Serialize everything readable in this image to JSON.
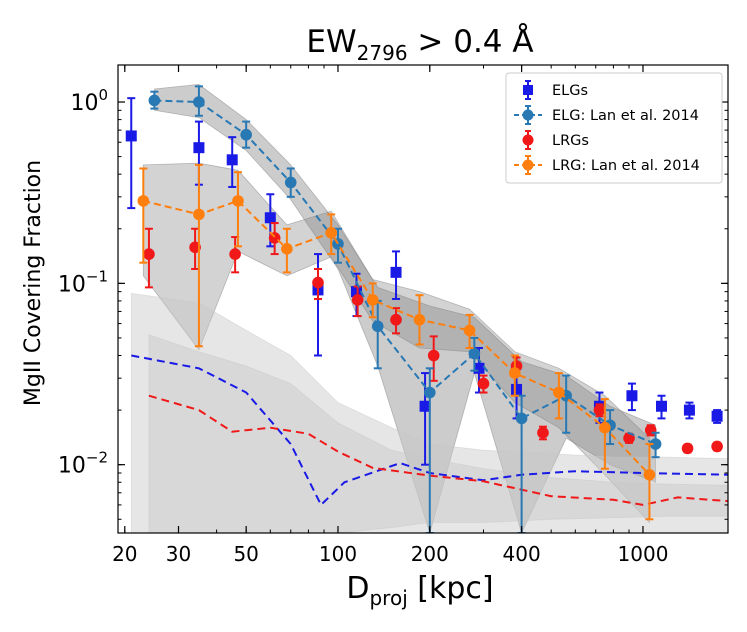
{
  "chart_data": {
    "type": "scatter",
    "title": "EW",
    "title_sub": "2796",
    "title_rest": " > 0.4 Å",
    "xlabel": "D",
    "xlabel_sub": "proj",
    "xlabel_rest": " [kpc]",
    "ylabel": "MgII Covering Fraction",
    "xscale": "log",
    "yscale": "log",
    "xlim": [
      19,
      1900
    ],
    "ylim": [
      0.0042,
      1.6
    ],
    "x_ticks": [
      {
        "value": 20,
        "label": "20"
      },
      {
        "value": 30,
        "label": "30"
      },
      {
        "value": 50,
        "label": "50"
      },
      {
        "value": 100,
        "label": "100"
      },
      {
        "value": 200,
        "label": "200"
      },
      {
        "value": 400,
        "label": "400"
      },
      {
        "value": 1000,
        "label": "1000"
      }
    ],
    "y_ticks": [
      {
        "value": 1,
        "label": "10",
        "exp": "0"
      },
      {
        "value": 0.1,
        "label": "10",
        "exp": "−1"
      },
      {
        "value": 0.01,
        "label": "10",
        "exp": "−2"
      }
    ],
    "legend_position": "top-right",
    "legend": [
      {
        "label": "ELGs",
        "marker": "square",
        "color": "#1a1ae6",
        "line": false
      },
      {
        "label": "ELG: Lan et al. 2014",
        "marker": "circle",
        "color": "#2878b4",
        "line": true
      },
      {
        "label": "LRGs",
        "marker": "circle",
        "color": "#f01818",
        "line": false
      },
      {
        "label": "LRG: Lan et al. 2014",
        "marker": "circle",
        "color": "#ff7f0e",
        "line": true
      }
    ],
    "series": [
      {
        "name": "ELGs",
        "marker": "square",
        "color": "#1a1ae6",
        "points": [
          {
            "x": 21,
            "y": 0.65,
            "lo": 0.26,
            "hi": 1.05
          },
          {
            "x": 35,
            "y": 0.56,
            "lo": 0.35,
            "hi": 0.78
          },
          {
            "x": 45,
            "y": 0.48,
            "lo": 0.34,
            "hi": 0.64
          },
          {
            "x": 60,
            "y": 0.23,
            "lo": 0.16,
            "hi": 0.31
          },
          {
            "x": 86,
            "y": 0.092,
            "lo": 0.04,
            "hi": 0.145
          },
          {
            "x": 115,
            "y": 0.09,
            "lo": 0.066,
            "hi": 0.113
          },
          {
            "x": 155,
            "y": 0.115,
            "lo": 0.082,
            "hi": 0.15
          },
          {
            "x": 193,
            "y": 0.021,
            "lo": 0.01,
            "hi": 0.032
          },
          {
            "x": 290,
            "y": 0.034,
            "lo": 0.025,
            "hi": 0.044
          },
          {
            "x": 385,
            "y": 0.026,
            "lo": 0.018,
            "hi": 0.034
          },
          {
            "x": 720,
            "y": 0.021,
            "lo": 0.017,
            "hi": 0.025
          },
          {
            "x": 920,
            "y": 0.024,
            "lo": 0.02,
            "hi": 0.028
          },
          {
            "x": 1150,
            "y": 0.021,
            "lo": 0.018,
            "hi": 0.024
          },
          {
            "x": 1420,
            "y": 0.02,
            "lo": 0.018,
            "hi": 0.022
          },
          {
            "x": 1750,
            "y": 0.0185,
            "lo": 0.017,
            "hi": 0.02
          }
        ]
      },
      {
        "name": "LRGs",
        "marker": "circle",
        "color": "#f01818",
        "points": [
          {
            "x": 24,
            "y": 0.145,
            "lo": 0.095,
            "hi": 0.2
          },
          {
            "x": 34,
            "y": 0.158,
            "lo": 0.12,
            "hi": 0.2
          },
          {
            "x": 46,
            "y": 0.145,
            "lo": 0.115,
            "hi": 0.18
          },
          {
            "x": 62,
            "y": 0.178,
            "lo": 0.145,
            "hi": 0.215
          },
          {
            "x": 86,
            "y": 0.101,
            "lo": 0.082,
            "hi": 0.12
          },
          {
            "x": 116,
            "y": 0.081,
            "lo": 0.066,
            "hi": 0.096
          },
          {
            "x": 155,
            "y": 0.063,
            "lo": 0.053,
            "hi": 0.073
          },
          {
            "x": 206,
            "y": 0.04,
            "lo": 0.029,
            "hi": 0.051
          },
          {
            "x": 300,
            "y": 0.028,
            "lo": 0.025,
            "hi": 0.031
          },
          {
            "x": 385,
            "y": 0.035,
            "lo": 0.031,
            "hi": 0.039
          },
          {
            "x": 470,
            "y": 0.015,
            "lo": 0.0138,
            "hi": 0.0162
          },
          {
            "x": 720,
            "y": 0.02,
            "lo": 0.0185,
            "hi": 0.0215
          },
          {
            "x": 900,
            "y": 0.014,
            "lo": 0.0132,
            "hi": 0.0148
          },
          {
            "x": 1060,
            "y": 0.0155,
            "lo": 0.0145,
            "hi": 0.0165
          },
          {
            "x": 1400,
            "y": 0.0123,
            "lo": 0.0117,
            "hi": 0.0129
          },
          {
            "x": 1750,
            "y": 0.0126,
            "lo": 0.012,
            "hi": 0.0132
          }
        ]
      },
      {
        "name": "ELG: Lan et al. 2014",
        "marker": "circle",
        "color": "#2878b4",
        "dashed": true,
        "points": [
          {
            "x": 25,
            "y": 1.02,
            "lo": 0.92,
            "hi": 1.14
          },
          {
            "x": 35,
            "y": 1.0,
            "lo": 0.84,
            "hi": 1.22
          },
          {
            "x": 50,
            "y": 0.66,
            "lo": 0.56,
            "hi": 0.78
          },
          {
            "x": 70,
            "y": 0.36,
            "lo": 0.3,
            "hi": 0.43
          },
          {
            "x": 100,
            "y": 0.165,
            "lo": 0.13,
            "hi": 0.2
          },
          {
            "x": 135,
            "y": 0.058,
            "lo": 0.034,
            "hi": 0.08
          },
          {
            "x": 200,
            "y": 0.025,
            "lo": 0.004,
            "hi": 0.034
          },
          {
            "x": 280,
            "y": 0.041,
            "lo": 0.033,
            "hi": 0.05
          },
          {
            "x": 400,
            "y": 0.018,
            "lo": 0.004,
            "hi": 0.024
          },
          {
            "x": 560,
            "y": 0.024,
            "lo": 0.015,
            "hi": 0.031
          },
          {
            "x": 780,
            "y": 0.0165,
            "lo": 0.013,
            "hi": 0.02
          },
          {
            "x": 1100,
            "y": 0.013,
            "lo": 0.011,
            "hi": 0.015
          }
        ]
      },
      {
        "name": "LRG: Lan et al. 2014",
        "marker": "circle",
        "color": "#ff7f0e",
        "dashed": true,
        "points": [
          {
            "x": 23,
            "y": 0.285,
            "lo": 0.13,
            "hi": 0.43
          },
          {
            "x": 35,
            "y": 0.24,
            "lo": 0.045,
            "hi": 0.45
          },
          {
            "x": 47,
            "y": 0.285,
            "lo": 0.16,
            "hi": 0.41
          },
          {
            "x": 68,
            "y": 0.155,
            "lo": 0.115,
            "hi": 0.2
          },
          {
            "x": 95,
            "y": 0.19,
            "lo": 0.145,
            "hi": 0.24
          },
          {
            "x": 130,
            "y": 0.081,
            "lo": 0.065,
            "hi": 0.1
          },
          {
            "x": 185,
            "y": 0.063,
            "lo": 0.046,
            "hi": 0.086
          },
          {
            "x": 270,
            "y": 0.055,
            "lo": 0.044,
            "hi": 0.067
          },
          {
            "x": 380,
            "y": 0.032,
            "lo": 0.024,
            "hi": 0.04
          },
          {
            "x": 530,
            "y": 0.025,
            "lo": 0.018,
            "hi": 0.032
          },
          {
            "x": 750,
            "y": 0.016,
            "lo": 0.0095,
            "hi": 0.023
          },
          {
            "x": 1050,
            "y": 0.0088,
            "lo": 0.005,
            "hi": 0.013
          }
        ]
      }
    ],
    "bands": [
      {
        "name": "ELG Lan et al. 2014 uncertainty band",
        "color": "#808080",
        "opacity": 0.4,
        "x": [
          25,
          35,
          50,
          70,
          100,
          135,
          200,
          280,
          400,
          560,
          780,
          1100
        ],
        "upper": [
          1.18,
          1.25,
          0.8,
          0.45,
          0.21,
          0.095,
          0.075,
          0.065,
          0.037,
          0.031,
          0.021,
          0.0165
        ],
        "lower": [
          0.9,
          0.82,
          0.54,
          0.29,
          0.12,
          0.035,
          0.004,
          0.032,
          0.004,
          0.014,
          0.01,
          0.008
        ]
      },
      {
        "name": "LRG Lan et al. 2014 uncertainty band",
        "color": "#808080",
        "opacity": 0.35,
        "x": [
          23,
          35,
          47,
          68,
          95,
          130,
          185,
          270,
          380,
          530,
          750,
          1050
        ],
        "upper": [
          0.45,
          0.46,
          0.42,
          0.21,
          0.25,
          0.105,
          0.09,
          0.072,
          0.042,
          0.034,
          0.024,
          0.014
        ],
        "lower": [
          0.11,
          0.043,
          0.15,
          0.11,
          0.14,
          0.062,
          0.044,
          0.042,
          0.022,
          0.016,
          0.0088,
          0.0048
        ]
      },
      {
        "name": "ELG null background band",
        "color": "#c8c8c8",
        "opacity": 0.45,
        "x": [
          21,
          35,
          50,
          70,
          100,
          150,
          200,
          300,
          500,
          800,
          1200,
          1900
        ],
        "upper": [
          0.088,
          0.078,
          0.055,
          0.04,
          0.022,
          0.016,
          0.013,
          0.012,
          0.0115,
          0.011,
          0.011,
          0.0108
        ],
        "lower": [
          0.0042,
          0.0042,
          0.0042,
          0.0042,
          0.0042,
          0.0042,
          0.0042,
          0.0042,
          0.0042,
          0.0042,
          0.0042,
          0.0042
        ]
      },
      {
        "name": "LRG null background band",
        "color": "#c8c8c8",
        "opacity": 0.45,
        "x": [
          24,
          35,
          50,
          70,
          100,
          150,
          200,
          300,
          500,
          800,
          1200,
          1900
        ],
        "upper": [
          0.052,
          0.042,
          0.035,
          0.028,
          0.017,
          0.012,
          0.0108,
          0.0095,
          0.0085,
          0.008,
          0.0078,
          0.0077
        ],
        "lower": [
          0.0042,
          0.0042,
          0.0042,
          0.0042,
          0.0042,
          0.0045,
          0.0048,
          0.0048,
          0.005,
          0.0051,
          0.0052,
          0.0052
        ]
      }
    ],
    "lines": [
      {
        "name": "ELG background",
        "color": "#1a1ae6",
        "dashed": true,
        "x": [
          21,
          35,
          50,
          70,
          88,
          105,
          160,
          200,
          300,
          400,
          600,
          1000,
          1900
        ],
        "y": [
          0.04,
          0.034,
          0.025,
          0.013,
          0.006,
          0.008,
          0.0102,
          0.009,
          0.0082,
          0.0088,
          0.0092,
          0.009,
          0.0088
        ]
      },
      {
        "name": "LRG background",
        "color": "#f01818",
        "dashed": true,
        "x": [
          24,
          35,
          45,
          60,
          80,
          100,
          130,
          200,
          300,
          500,
          800,
          1000,
          1300,
          1900
        ],
        "y": [
          0.024,
          0.02,
          0.0152,
          0.016,
          0.0148,
          0.0118,
          0.0096,
          0.0087,
          0.0081,
          0.0067,
          0.0064,
          0.006,
          0.0066,
          0.0063
        ]
      }
    ]
  }
}
